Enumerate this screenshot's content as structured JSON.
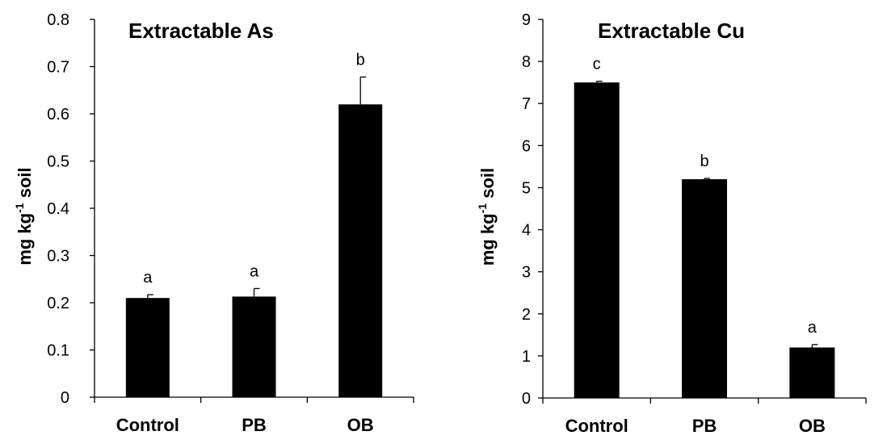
{
  "chart_data": [
    {
      "type": "bar",
      "title": "Extractable As",
      "ylabel_main": "mg kg",
      "ylabel_sup": "-1",
      "ylabel_tail": " soil",
      "xlabel": "",
      "categories": [
        "Control",
        "PB",
        "OB"
      ],
      "values": [
        0.21,
        0.213,
        0.62
      ],
      "errors": [
        0.007,
        0.017,
        0.058
      ],
      "significance": [
        "a",
        "a",
        "b"
      ],
      "ylim": [
        0,
        0.8
      ],
      "yticks": [
        "0",
        "0.1",
        "0.2",
        "0.3",
        "0.4",
        "0.5",
        "0.6",
        "0.7",
        "0.8"
      ],
      "bar_color": "#000000",
      "grid": false,
      "legend": "none"
    },
    {
      "type": "bar",
      "title": "Extractable Cu",
      "ylabel_main": "mg kg",
      "ylabel_sup": "-1",
      "ylabel_tail": " soil",
      "xlabel": "",
      "categories": [
        "Control",
        "PB",
        "OB"
      ],
      "values": [
        7.5,
        5.2,
        1.2
      ],
      "errors": [
        0.03,
        0.02,
        0.07
      ],
      "significance": [
        "c",
        "b",
        "a"
      ],
      "ylim": [
        0,
        9
      ],
      "yticks": [
        "0",
        "1",
        "2",
        "3",
        "4",
        "5",
        "6",
        "7",
        "8",
        "9"
      ],
      "bar_color": "#000000",
      "grid": false,
      "legend": "none"
    }
  ]
}
